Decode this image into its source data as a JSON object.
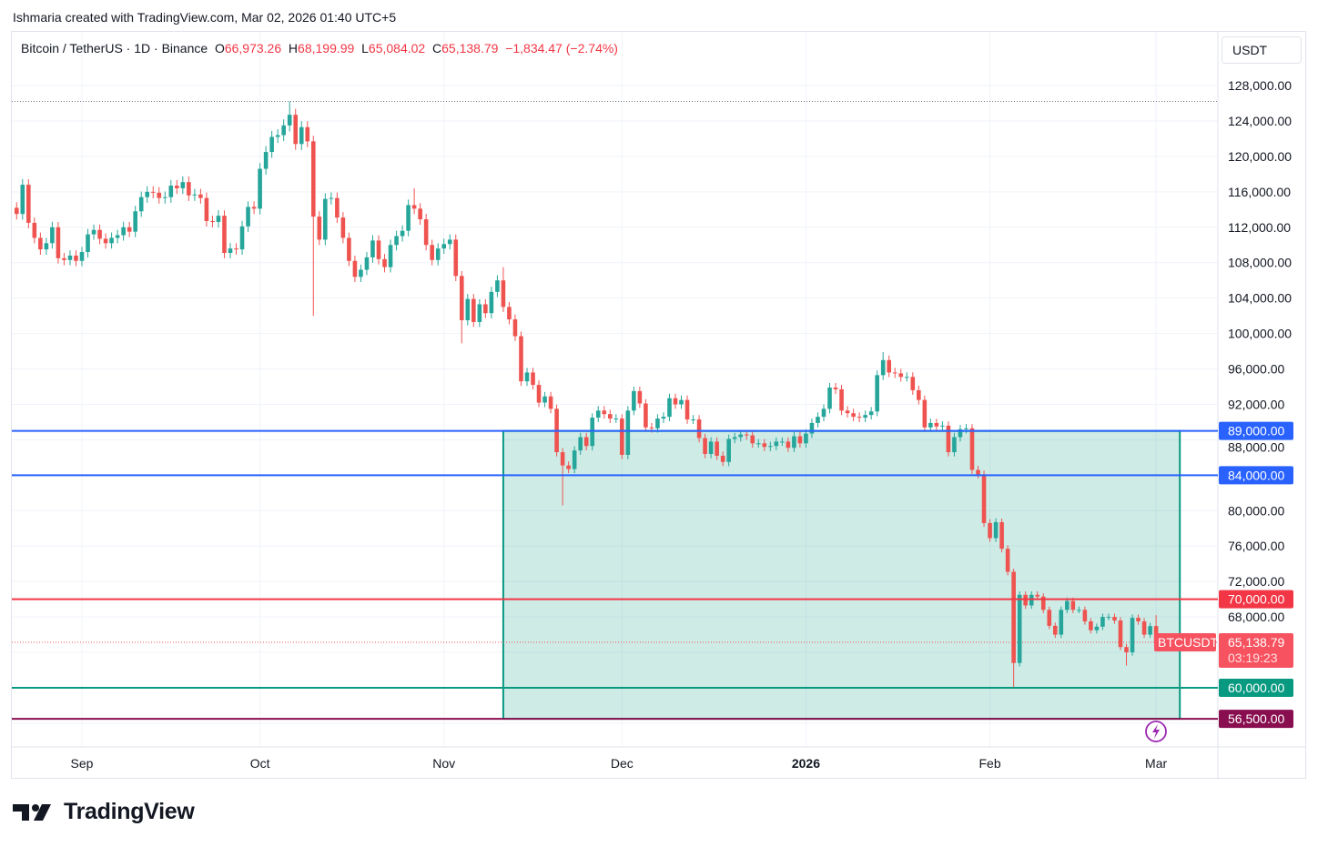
{
  "credit": "Ishmaria created with TradingView.com, Mar 02, 2026 01:40 UTC+5",
  "legend": {
    "symbol": "Bitcoin / TetherUS · 1D · Binance",
    "open_label": "O",
    "open": "66,973.26",
    "high_label": "H",
    "high": "68,199.99",
    "low_label": "L",
    "low": "65,084.02",
    "close_label": "C",
    "close": "65,138.79",
    "change": "−1,834.47 (−2.74%)"
  },
  "currency_button": "USDT",
  "brand": "TradingView",
  "chart_data": {
    "type": "candlestick",
    "title": "Bitcoin / TetherUS · 1D · Binance",
    "ylim": [
      54000,
      132000
    ],
    "y_unit": "thousand USDT",
    "y_ticks": [
      "128,000.00",
      "124,000.00",
      "120,000.00",
      "116,000.00",
      "112,000.00",
      "108,000.00",
      "104,000.00",
      "100,000.00",
      "96,000.00",
      "92,000.00",
      "88,000.00",
      "80,000.00",
      "76,000.00",
      "72,000.00",
      "68,000.00"
    ],
    "y_tick_values": [
      128,
      124,
      120,
      116,
      112,
      108,
      104,
      100,
      96,
      92,
      88,
      80,
      76,
      72,
      68
    ],
    "x_ticks": [
      {
        "label": "Sep",
        "date": "2025-09-01",
        "bold": false
      },
      {
        "label": "Oct",
        "date": "2025-10-01",
        "bold": false
      },
      {
        "label": "Nov",
        "date": "2025-11-01",
        "bold": false
      },
      {
        "label": "Dec",
        "date": "2025-12-01",
        "bold": false
      },
      {
        "label": "2026",
        "date": "2026-01-01",
        "bold": true
      },
      {
        "label": "Feb",
        "date": "2026-02-01",
        "bold": false
      },
      {
        "label": "Mar",
        "date": "2026-03-01",
        "bold": false
      }
    ],
    "colors": {
      "up": "#26a69a",
      "down": "#ef5350"
    },
    "closes_by_month": [
      {
        "month": "2025-08",
        "first_day": 21,
        "close": [
          113.5,
          116.8,
          112.5,
          110.8,
          109.5,
          110.2,
          112.0,
          108.5,
          108.3,
          108.8,
          108.2
        ]
      },
      {
        "month": "2025-09",
        "first_day": 1,
        "close": [
          109.2,
          111.2,
          111.7,
          110.7,
          110.2,
          110.8,
          111.1,
          112.0,
          111.5,
          113.8,
          115.4,
          116.0,
          115.9,
          115.3,
          115.4,
          116.7,
          116.4,
          117.1,
          115.6,
          115.7,
          115.3,
          112.7,
          112.6,
          113.3,
          109.1,
          109.6,
          109.5,
          112.1,
          114.3,
          114.1
        ]
      },
      {
        "month": "2025-10",
        "first_day": 1,
        "close": [
          118.6,
          120.5,
          122.2,
          122.4,
          123.5,
          124.7,
          121.4,
          123.3,
          121.7,
          113.2,
          110.6,
          115.2,
          115.3,
          113.1,
          110.8,
          108.2,
          106.4,
          107.2,
          108.6,
          110.5,
          108.4,
          107.5,
          110.0,
          111.0,
          111.6,
          114.5,
          114.1,
          112.9,
          110.0,
          108.3,
          109.6
        ]
      },
      {
        "month": "2025-11",
        "first_day": 1,
        "close": [
          110.1,
          110.6,
          106.5,
          101.5,
          103.9,
          101.3,
          103.3,
          102.3,
          104.7,
          106.0,
          103.0,
          101.6,
          99.7,
          94.6,
          95.6,
          94.2,
          92.2,
          92.9,
          91.5,
          86.6,
          85.1,
          84.7,
          86.8,
          88.3,
          87.3,
          90.5,
          91.3,
          90.9,
          90.4,
          90.4
        ]
      },
      {
        "month": "2025-12",
        "first_day": 1,
        "close": [
          86.3,
          91.3,
          93.5,
          92.1,
          89.4,
          89.3,
          90.4,
          90.6,
          92.7,
          92.0,
          92.5,
          90.3,
          90.3,
          88.2,
          86.4,
          87.8,
          86.2,
          85.5,
          88.1,
          88.3,
          88.6,
          88.5,
          87.6,
          87.6,
          87.2,
          87.3,
          87.8,
          87.8,
          87.1,
          88.4,
          87.6
        ]
      },
      {
        "month": "2026-01",
        "first_day": 1,
        "close": [
          88.7,
          89.9,
          90.6,
          91.5,
          93.9,
          93.7,
          91.3,
          91.0,
          90.6,
          90.5,
          90.8,
          91.2,
          95.3,
          97.0,
          95.6,
          95.5,
          95.1,
          95.1,
          93.6,
          92.5,
          89.4,
          89.9,
          89.5,
          89.6,
          86.6,
          88.3,
          89.2,
          89.3,
          84.6,
          84.1,
          78.6
        ]
      },
      {
        "month": "2026-02",
        "first_day": 1,
        "close": [
          76.9,
          78.7,
          75.7,
          73.1,
          62.8,
          70.5,
          69.3,
          70.5,
          70.3,
          68.8,
          67.0,
          66.0,
          68.8,
          69.8,
          68.8,
          68.8,
          67.5,
          66.5,
          66.9,
          68.0,
          68.0,
          67.6,
          64.6,
          64.0,
          67.9,
          67.5,
          66.0,
          66.97
        ]
      },
      {
        "month": "2026-03",
        "first_day": 1,
        "close": [
          65.14
        ]
      }
    ],
    "first_open": 114.2,
    "wick_overrides": [
      {
        "date": "2025-10-06",
        "high": 126.2
      },
      {
        "date": "2025-10-10",
        "low": 102.0
      },
      {
        "date": "2025-10-27",
        "high": 116.4
      },
      {
        "date": "2025-11-04",
        "low": 98.9
      },
      {
        "date": "2025-11-11",
        "high": 107.5
      },
      {
        "date": "2025-11-21",
        "low": 80.6
      },
      {
        "date": "2026-01-14",
        "high": 97.9
      },
      {
        "date": "2026-02-05",
        "low": 60.0
      },
      {
        "date": "2026-02-24",
        "low": 62.5
      },
      {
        "date": "2026-03-01",
        "high": 68.2,
        "low": 65.08
      }
    ],
    "ath_dotted_level": 126.2,
    "horizontal_levels": [
      {
        "value": 89.0,
        "label": "89,000.00",
        "color": "#2962ff"
      },
      {
        "value": 84.0,
        "label": "84,000.00",
        "color": "#2962ff"
      },
      {
        "value": 70.0,
        "label": "70,000.00",
        "color": "#f23645"
      },
      {
        "value": 60.0,
        "label": "60,000.00",
        "color": "#089981"
      },
      {
        "value": 56.5,
        "label": "56,500.00",
        "color": "#880e4f"
      }
    ],
    "zone": {
      "from_date": "2025-11-11",
      "to_date": "2026-03-05",
      "top": 89.0,
      "bottom": 56.5,
      "color": "#089981"
    },
    "last_price": {
      "symbol": "BTCUSDT",
      "value": 65.13879,
      "label": "65,138.79",
      "countdown": "03:19:23",
      "color": "#f7525f"
    }
  }
}
